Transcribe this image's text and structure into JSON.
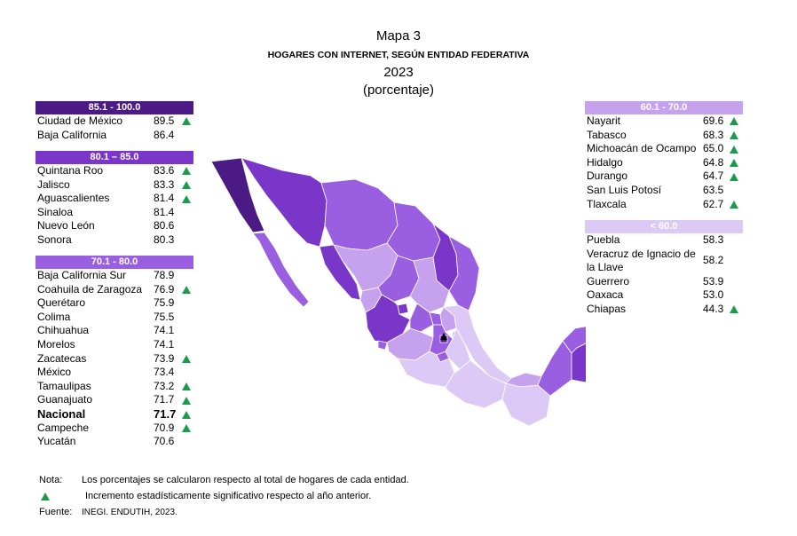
{
  "header": {
    "map_number": "Mapa 3",
    "title": "HOGARES CON INTERNET, SEGÚN ENTIDAD FEDERATIVA",
    "year": "2023",
    "unit": "(porcentaje)"
  },
  "legend_colors": {
    "c85_100": "#4b1a84",
    "c80_85": "#7a35c9",
    "c70_80": "#9a5ee0",
    "c60_70": "#c6a2ee",
    "c_lt60": "#ddc9f5",
    "arrow": "#1a9d4b"
  },
  "groups_left": [
    {
      "range": "85.1 - 100.0",
      "rows": [
        {
          "name": "Ciudad de México",
          "value": "89.5",
          "up": true
        },
        {
          "name": "Baja California",
          "value": "86.4",
          "up": false
        }
      ]
    },
    {
      "range": "80.1 – 85.0",
      "rows": [
        {
          "name": "Quintana Roo",
          "value": "83.6",
          "up": true
        },
        {
          "name": "Jalisco",
          "value": "83.3",
          "up": true
        },
        {
          "name": "Aguascalientes",
          "value": "81.4",
          "up": true
        },
        {
          "name": "Sinaloa",
          "value": "81.4",
          "up": false
        },
        {
          "name": "Nuevo León",
          "value": "80.6",
          "up": false
        },
        {
          "name": "Sonora",
          "value": "80.3",
          "up": false
        }
      ]
    },
    {
      "range": "70.1 - 80.0",
      "rows": [
        {
          "name": "Baja California Sur",
          "value": "78.9",
          "up": false
        },
        {
          "name": "Coahuila de Zaragoza",
          "value": "76.9",
          "up": true
        },
        {
          "name": "Querétaro",
          "value": "75.9",
          "up": false
        },
        {
          "name": "Colima",
          "value": "75.5",
          "up": false
        },
        {
          "name": "Chihuahua",
          "value": "74.1",
          "up": false
        },
        {
          "name": "Morelos",
          "value": "74.1",
          "up": false
        },
        {
          "name": "Zacatecas",
          "value": "73.9",
          "up": true
        },
        {
          "name": "México",
          "value": "73.4",
          "up": false
        },
        {
          "name": "Tamaulipas",
          "value": "73.2",
          "up": true
        },
        {
          "name": "Guanajuato",
          "value": "71.7",
          "up": true
        },
        {
          "name": "Nacional",
          "value": "71.7",
          "up": true,
          "bold": true
        },
        {
          "name": "Campeche",
          "value": "70.9",
          "up": true
        },
        {
          "name": "Yucatán",
          "value": "70.6",
          "up": false
        }
      ]
    }
  ],
  "groups_right": [
    {
      "range": "60.1 - 70.0",
      "rows": [
        {
          "name": "Nayarit",
          "value": "69.6",
          "up": true
        },
        {
          "name": "Tabasco",
          "value": "68.3",
          "up": true
        },
        {
          "name": "Michoacán de Ocampo",
          "value": "65.0",
          "up": true
        },
        {
          "name": "Hidalgo",
          "value": "64.8",
          "up": true
        },
        {
          "name": "Durango",
          "value": "64.7",
          "up": true
        },
        {
          "name": "San Luis Potosí",
          "value": "63.5",
          "up": false
        },
        {
          "name": "Tlaxcala",
          "value": "62.7",
          "up": true
        }
      ]
    },
    {
      "range": "< 60.0",
      "rows": [
        {
          "name": "Puebla",
          "value": "58.3",
          "up": false
        },
        {
          "name": "Veracruz de Ignacio de la Llave",
          "value": "58.2",
          "up": false
        },
        {
          "name": "Guerrero",
          "value": "53.9",
          "up": false
        },
        {
          "name": "Oaxaca",
          "value": "53.0",
          "up": false
        },
        {
          "name": "Chiapas",
          "value": "44.3",
          "up": true
        }
      ]
    }
  ],
  "notes": {
    "nota_label": "Nota:",
    "nota_text": "Los porcentajes se calcularon respecto al total de hogares de cada entidad.",
    "arrow_text": "Incremento estadísticamente significativo respecto al año anterior.",
    "fuente_label": "Fuente:",
    "fuente_text": "INEGI. ENDUTIH, 2023."
  }
}
